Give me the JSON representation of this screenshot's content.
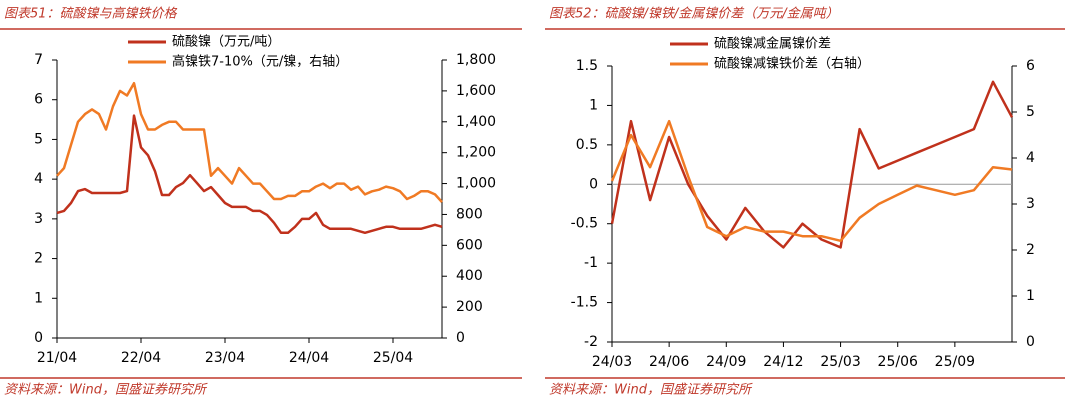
{
  "chart_data": [
    {
      "type": "line",
      "title": "图表51：硫酸镍与高镍铁价格",
      "source": "资料来源：Wind，国盛证券研究所",
      "x": [
        "2021-04",
        "2021-05",
        "2021-06",
        "2021-07",
        "2021-08",
        "2021-09",
        "2021-10",
        "2021-11",
        "2021-12",
        "2022-01",
        "2022-02",
        "2022-03",
        "2022-04",
        "2022-05",
        "2022-06",
        "2022-07",
        "2022-08",
        "2022-09",
        "2022-10",
        "2022-11",
        "2022-12",
        "2023-01",
        "2023-02",
        "2023-03",
        "2023-04",
        "2023-05",
        "2023-06",
        "2023-07",
        "2023-08",
        "2023-09",
        "2023-10",
        "2023-11",
        "2023-12",
        "2024-01",
        "2024-02",
        "2024-03",
        "2024-04",
        "2024-05",
        "2024-06",
        "2024-07",
        "2024-08",
        "2024-09",
        "2024-10",
        "2024-11",
        "2024-12",
        "2025-01",
        "2025-02",
        "2025-03",
        "2025-04",
        "2025-05",
        "2025-06",
        "2025-07",
        "2025-08",
        "2025-09",
        "2025-10",
        "2025-11"
      ],
      "xlim": [
        "2021-04",
        "2025-11"
      ],
      "xticks": [
        {
          "value": "2021-04",
          "label": "21/04"
        },
        {
          "value": "2022-04",
          "label": "22/04"
        },
        {
          "value": "2023-04",
          "label": "23/04"
        },
        {
          "value": "2024-04",
          "label": "24/04"
        },
        {
          "value": "2025-04",
          "label": "25/04"
        }
      ],
      "ylim": [
        0,
        7
      ],
      "yticks": [
        0,
        1,
        2,
        3,
        4,
        5,
        6,
        7
      ],
      "y2lim": [
        0,
        1800
      ],
      "y2ticks": [
        0,
        200,
        400,
        600,
        800,
        {
          "value": 1000,
          "label": "1,000"
        },
        {
          "value": 1200,
          "label": "1,200"
        },
        {
          "value": 1400,
          "label": "1,400"
        },
        {
          "value": 1600,
          "label": "1,600"
        },
        {
          "value": 1800,
          "label": "1,800"
        }
      ],
      "series": [
        {
          "name": "硫酸镍（万元/吨）",
          "color": "#c0311c",
          "values": [
            3.15,
            3.2,
            3.4,
            3.7,
            3.75,
            3.65,
            3.65,
            3.65,
            3.65,
            3.65,
            3.7,
            5.6,
            4.8,
            4.6,
            4.2,
            3.6,
            3.6,
            3.8,
            3.9,
            4.1,
            3.9,
            3.7,
            3.8,
            3.6,
            3.4,
            3.3,
            3.3,
            3.3,
            3.2,
            3.2,
            3.1,
            2.9,
            2.65,
            2.65,
            2.8,
            3.0,
            3.0,
            3.15,
            2.85,
            2.75,
            2.75,
            2.75,
            2.75,
            2.7,
            2.65,
            2.7,
            2.75,
            2.8,
            2.8,
            2.75,
            2.75,
            2.75,
            2.75,
            2.8,
            2.85,
            2.8
          ]
        },
        {
          "name": "高镍铁7-10%（元/镍，右轴）",
          "color": "#f07a24",
          "axis": "y2",
          "values": [
            1050,
            1100,
            1250,
            1400,
            1450,
            1480,
            1450,
            1350,
            1500,
            1600,
            1570,
            1650,
            1450,
            1350,
            1350,
            1380,
            1400,
            1400,
            1350,
            1350,
            1350,
            1350,
            1050,
            1100,
            1050,
            1000,
            1100,
            1050,
            1000,
            1000,
            950,
            900,
            900,
            920,
            920,
            950,
            950,
            980,
            1000,
            970,
            1000,
            1000,
            960,
            980,
            930,
            950,
            960,
            980,
            970,
            950,
            900,
            920,
            950,
            950,
            930,
            880
          ]
        }
      ]
    },
    {
      "type": "line",
      "title": "图表52：硫酸镍/镍铁/金属镍价差（万元/金属吨）",
      "source": "资料来源：Wind，国盛证券研究所",
      "x": [
        "2024-03",
        "2024-04",
        "2024-05",
        "2024-06",
        "2024-07",
        "2024-08",
        "2024-09",
        "2024-10",
        "2024-11",
        "2024-12",
        "2025-01",
        "2025-02",
        "2025-03",
        "2025-04",
        "2025-05",
        "2025-06",
        "2025-07",
        "2025-08",
        "2025-09",
        "2025-10",
        "2025-11",
        "2025-12"
      ],
      "xlim": [
        "2024-03",
        "2025-12"
      ],
      "xticks": [
        {
          "value": "2024-03",
          "label": "24/03"
        },
        {
          "value": "2024-06",
          "label": "24/06"
        },
        {
          "value": "2024-09",
          "label": "24/09"
        },
        {
          "value": "2024-12",
          "label": "24/12"
        },
        {
          "value": "2025-03",
          "label": "25/03"
        },
        {
          "value": "2025-06",
          "label": "25/06"
        },
        {
          "value": "2025-09",
          "label": "25/09"
        }
      ],
      "ylim": [
        -2,
        1.5
      ],
      "yticks": [
        -2,
        -1.5,
        -1,
        -0.5,
        0,
        0.5,
        1,
        1.5
      ],
      "y2lim": [
        0,
        6
      ],
      "y2ticks": [
        0,
        1,
        2,
        3,
        4,
        5,
        6
      ],
      "series": [
        {
          "name": "硫酸镍减金属镍价差",
          "color": "#c0311c",
          "values": [
            -0.5,
            0.8,
            -0.2,
            0.6,
            0.0,
            -0.4,
            -0.7,
            -0.3,
            -0.6,
            -0.8,
            -0.5,
            -0.7,
            -0.8,
            0.7,
            0.2,
            0.3,
            0.4,
            0.5,
            0.6,
            0.7,
            1.3,
            0.85
          ]
        },
        {
          "name": "硫酸镍减镍铁价差（右轴）",
          "color": "#f07a24",
          "axis": "y2",
          "values": [
            3.5,
            4.5,
            3.8,
            4.8,
            3.6,
            2.5,
            2.3,
            2.5,
            2.4,
            2.4,
            2.3,
            2.3,
            2.2,
            2.7,
            3.0,
            3.2,
            3.4,
            3.3,
            3.2,
            3.3,
            3.8,
            3.75
          ]
        }
      ]
    }
  ]
}
